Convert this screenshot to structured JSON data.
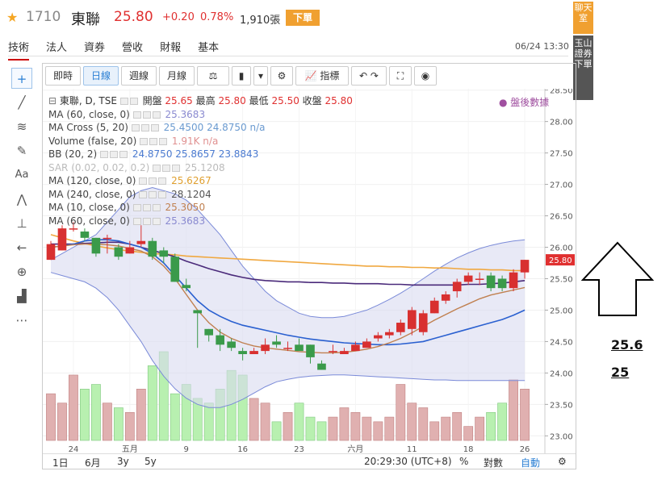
{
  "header": {
    "code": "1710",
    "name": "東聯",
    "price": "25.80",
    "change": "+0.20",
    "percent": "0.78%",
    "volume": "1,910張",
    "order_button": "下單",
    "date": "06/24 13:30"
  },
  "tabs": [
    "技術",
    "法人",
    "資券",
    "營收",
    "財報",
    "基本"
  ],
  "side": {
    "chat": "聊天室",
    "order": "玉山證券下單"
  },
  "toolbar": {
    "realtime": "即時",
    "daily": "日線",
    "weekly": "週線",
    "monthly": "月線",
    "indicator": "指標"
  },
  "legend": {
    "main": "東聯, D, TSE",
    "open_label": "開盤",
    "open": "25.65",
    "high_label": "最高",
    "high": "25.80",
    "low_label": "最低",
    "low": "25.50",
    "close_label": "收盤",
    "close": "25.80",
    "rows": [
      {
        "name": "MA (60, close, 0)",
        "values": "25.3683",
        "color": "#8a8ad0"
      },
      {
        "name": "MA Cross (5, 20)",
        "values": "25.4500  24.8750  n/a",
        "color": "#6a9ad0"
      },
      {
        "name": "Volume (false, 20)",
        "values": "1.91K  n/a",
        "color": "#e09090"
      },
      {
        "name": "BB (20, 2)",
        "values": "24.8750  25.8657  23.8843",
        "color": "#4a7ad0"
      },
      {
        "name": "SAR (0.02, 0.02, 0.2)",
        "values": "25.1208",
        "color": "#bbbbbb"
      },
      {
        "name": "MA (120, close, 0)",
        "values": "25.6267",
        "color": "#e0a030"
      },
      {
        "name": "MA (240, close, 0)",
        "values": "28.1204",
        "color": "#555555"
      },
      {
        "name": "MA (10, close, 0)",
        "values": "25.3050",
        "color": "#c08050"
      },
      {
        "name": "MA (60, close, 0)",
        "values": "25.3683",
        "color": "#8a8ad0"
      }
    ],
    "after_hours": "● 盤後數據"
  },
  "chart_data": {
    "type": "candlestick",
    "y_ticks": [
      "28.50",
      "28.00",
      "27.50",
      "27.00",
      "26.50",
      "26.00",
      "25.50",
      "25.00",
      "24.50",
      "24.00",
      "23.50",
      "23.00"
    ],
    "ylim": [
      22.85,
      28.65
    ],
    "current_price_label": "25.80",
    "x_ticks": [
      "24",
      "五月",
      "9",
      "16",
      "23",
      "六月",
      "11",
      "18",
      "26"
    ],
    "x_tick_index": [
      2,
      7,
      12,
      17,
      22,
      27,
      32,
      37,
      42
    ],
    "candles": [
      [
        25.8,
        26.05,
        25.8,
        26.1
      ],
      [
        25.95,
        26.3,
        25.95,
        26.35
      ],
      [
        26.3,
        26.3,
        26.25,
        26.4
      ],
      [
        26.25,
        26.15,
        26.1,
        26.3
      ],
      [
        26.15,
        25.9,
        25.85,
        26.15
      ],
      [
        26.15,
        26.15,
        25.9,
        26.2
      ],
      [
        26.0,
        25.85,
        25.8,
        26.05
      ],
      [
        25.9,
        26.0,
        25.9,
        26.1
      ],
      [
        26.05,
        26.1,
        26.0,
        26.35
      ],
      [
        26.1,
        25.85,
        25.8,
        26.15
      ],
      [
        25.95,
        25.85,
        25.75,
        26.0
      ],
      [
        25.85,
        25.45,
        25.45,
        25.9
      ],
      [
        25.4,
        25.35,
        25.3,
        25.5
      ],
      [
        25.0,
        24.95,
        24.4,
        25.0
      ],
      [
        24.7,
        24.6,
        24.5,
        24.7
      ],
      [
        24.6,
        24.45,
        24.35,
        24.7
      ],
      [
        24.5,
        24.4,
        24.35,
        24.55
      ],
      [
        24.35,
        24.3,
        24.2,
        24.4
      ],
      [
        24.3,
        24.35,
        24.3,
        24.4
      ],
      [
        24.35,
        24.45,
        24.3,
        24.55
      ],
      [
        24.5,
        24.45,
        24.4,
        24.6
      ],
      [
        24.4,
        24.4,
        24.35,
        24.5
      ],
      [
        24.45,
        24.35,
        24.35,
        24.55
      ],
      [
        24.45,
        24.25,
        24.15,
        24.45
      ],
      [
        24.15,
        24.05,
        24.05,
        24.2
      ],
      [
        24.35,
        24.35,
        24.3,
        24.45
      ],
      [
        24.3,
        24.35,
        24.3,
        24.4
      ],
      [
        24.35,
        24.45,
        24.35,
        24.5
      ],
      [
        24.4,
        24.5,
        24.4,
        24.55
      ],
      [
        24.55,
        24.6,
        24.5,
        24.65
      ],
      [
        24.6,
        24.65,
        24.55,
        24.7
      ],
      [
        24.65,
        24.8,
        24.6,
        24.85
      ],
      [
        24.7,
        25.0,
        24.6,
        25.05
      ],
      [
        24.65,
        24.95,
        24.6,
        25.0
      ],
      [
        24.95,
        25.15,
        24.95,
        25.2
      ],
      [
        25.15,
        25.25,
        25.1,
        25.3
      ],
      [
        25.3,
        25.45,
        25.2,
        25.5
      ],
      [
        25.45,
        25.55,
        25.4,
        25.6
      ],
      [
        25.5,
        25.5,
        25.4,
        25.6
      ],
      [
        25.55,
        25.35,
        25.3,
        25.6
      ],
      [
        25.5,
        25.35,
        25.3,
        25.55
      ],
      [
        25.35,
        25.6,
        25.3,
        25.65
      ],
      [
        25.6,
        25.8,
        25.5,
        25.8
      ]
    ],
    "volume_bars": [
      50,
      40,
      70,
      55,
      60,
      40,
      35,
      30,
      55,
      80,
      95,
      50,
      60,
      45,
      40,
      55,
      75,
      70,
      45,
      40,
      20,
      30,
      40,
      25,
      20,
      25,
      35,
      30,
      25,
      20,
      25,
      60,
      40,
      35,
      20,
      25,
      30,
      15,
      25,
      30,
      40,
      65,
      55
    ],
    "ma_purple": [
      26.05,
      26.05,
      26.05,
      26.06,
      26.07,
      26.08,
      26.08,
      26.05,
      26.0,
      25.95,
      25.9,
      25.85,
      25.78,
      25.72,
      25.66,
      25.61,
      25.56,
      25.52,
      25.49,
      25.47,
      25.46,
      25.45,
      25.45,
      25.44,
      25.44,
      25.43,
      25.43,
      25.42,
      25.42,
      25.42,
      25.41,
      25.41,
      25.4,
      25.4,
      25.4,
      25.4,
      25.4,
      25.41,
      25.41,
      25.42,
      25.43,
      25.45,
      25.47
    ],
    "ma_orange": [
      26.2,
      26.15,
      26.1,
      26.06,
      26.02,
      25.99,
      25.96,
      25.94,
      25.92,
      25.9,
      25.89,
      25.88,
      25.86,
      25.85,
      25.84,
      25.83,
      25.82,
      25.81,
      25.8,
      25.79,
      25.78,
      25.77,
      25.76,
      25.75,
      25.74,
      25.73,
      25.72,
      25.71,
      25.7,
      25.7,
      25.69,
      25.69,
      25.68,
      25.68,
      25.67,
      25.67,
      25.66,
      25.65,
      25.65,
      25.64,
      25.64,
      25.63,
      25.63
    ],
    "ma_blue": [
      26.0,
      26.02,
      26.05,
      26.1,
      26.12,
      26.12,
      26.1,
      26.05,
      26.0,
      25.9,
      25.75,
      25.55,
      25.35,
      25.15,
      25.0,
      24.9,
      24.82,
      24.76,
      24.72,
      24.68,
      24.64,
      24.6,
      24.57,
      24.54,
      24.52,
      24.5,
      24.48,
      24.47,
      24.46,
      24.45,
      24.45,
      24.46,
      24.48,
      24.5,
      24.55,
      24.6,
      24.65,
      24.7,
      24.75,
      24.8,
      24.85,
      24.92,
      25.0
    ],
    "ma_brown": [
      26.0,
      26.02,
      26.04,
      26.05,
      26.05,
      26.04,
      26.02,
      25.98,
      25.94,
      25.85,
      25.7,
      25.5,
      25.25,
      25.0,
      24.8,
      24.65,
      24.55,
      24.48,
      24.43,
      24.4,
      24.38,
      24.36,
      24.34,
      24.33,
      24.32,
      24.32,
      24.33,
      24.35,
      24.38,
      24.42,
      24.48,
      24.55,
      24.64,
      24.74,
      24.84,
      24.93,
      25.02,
      25.1,
      25.18,
      25.24,
      25.28,
      25.32,
      25.36
    ],
    "bb_upper": [
      25.8,
      25.9,
      26.0,
      26.1,
      26.2,
      26.4,
      26.6,
      26.8,
      26.9,
      26.95,
      26.9,
      26.85,
      26.75,
      26.6,
      26.4,
      26.2,
      25.95,
      25.7,
      25.5,
      25.3,
      25.15,
      25.05,
      24.95,
      24.9,
      24.88,
      24.88,
      24.9,
      24.95,
      25.0,
      25.08,
      25.17,
      25.27,
      25.38,
      25.5,
      25.62,
      25.73,
      25.83,
      25.91,
      25.98,
      26.03,
      26.07,
      26.1,
      26.12
    ],
    "bb_lower": [
      25.6,
      25.55,
      25.5,
      25.45,
      25.35,
      25.2,
      25.0,
      24.75,
      24.5,
      24.2,
      23.95,
      23.75,
      23.6,
      23.5,
      23.45,
      23.45,
      23.5,
      23.58,
      23.68,
      23.78,
      23.86,
      23.9,
      23.93,
      23.95,
      23.96,
      23.97,
      23.97,
      23.96,
      23.95,
      23.94,
      23.93,
      23.92,
      23.91,
      23.9,
      23.89,
      23.89,
      23.88,
      23.88,
      23.88,
      23.88,
      23.88,
      23.88,
      23.88
    ]
  },
  "bottom": {
    "d1": "1日",
    "m6": "6月",
    "y3": "3y",
    "y5": "5y",
    "time": "20:29:30 (UTC+8)",
    "pct": "%",
    "log": "對數",
    "auto": "自動"
  },
  "annotations": {
    "a1": "25.6",
    "a2": "25"
  }
}
